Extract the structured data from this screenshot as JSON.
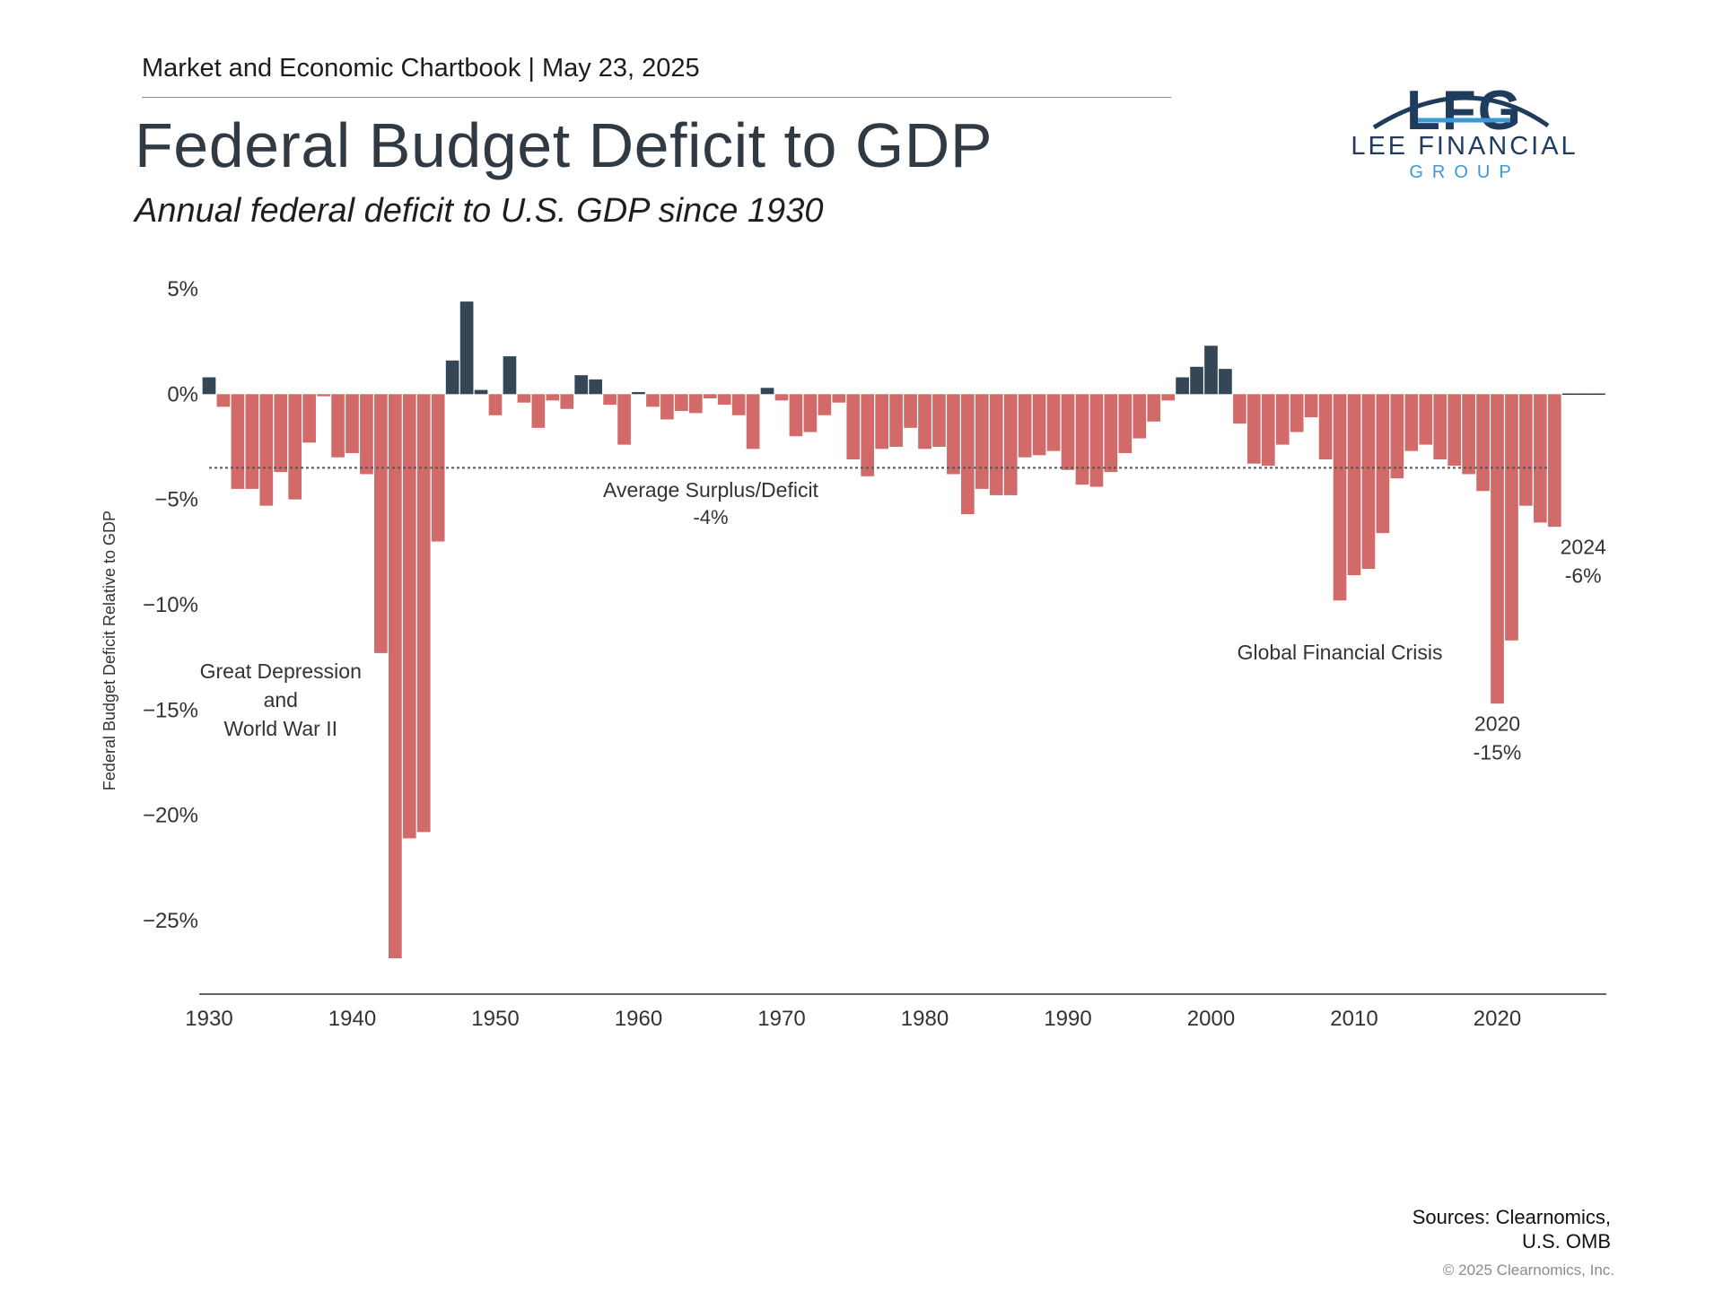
{
  "header": {
    "kicker": "Market and Economic Chartbook | May 23, 2025",
    "title": "Federal Budget Deficit to GDP",
    "subtitle": "Annual federal deficit to U.S. GDP since 1930"
  },
  "logo": {
    "monogram": "LFG",
    "name": "LEE FINANCIAL",
    "tagline": "GROUP",
    "colors": {
      "dark": "#1f3b5e",
      "light": "#3a9ad9"
    }
  },
  "footer": {
    "sources_line1": "Sources: Clearnomics,",
    "sources_line2": "U.S. OMB",
    "copyright": "© 2025 Clearnomics, Inc."
  },
  "chart_data": {
    "type": "bar",
    "ylabel": "Federal Budget Deficit Relative to GDP",
    "ylim": [
      -28.5,
      5
    ],
    "y_ticks": [
      5,
      0,
      -5,
      -10,
      -15,
      -20,
      -25
    ],
    "y_tick_labels": [
      "5%",
      "0%",
      "−5%",
      "−10%",
      "−15%",
      "−20%",
      "−25%"
    ],
    "x_ticks": [
      1930,
      1940,
      1950,
      1960,
      1970,
      1980,
      1990,
      2000,
      2010,
      2020
    ],
    "xlim": [
      1930,
      2025
    ],
    "colors": {
      "surplus": "#354656",
      "deficit": "#d36a6a",
      "axis": "#333333",
      "average": "#555555"
    },
    "average_value": -3.5,
    "average_label": "Average Surplus/Deficit",
    "average_value_label": "-4%",
    "series": [
      {
        "x": [
          1930,
          1931,
          1932,
          1933,
          1934,
          1935,
          1936,
          1937,
          1938,
          1939,
          1940,
          1941,
          1942,
          1943,
          1944,
          1945,
          1946,
          1947,
          1948,
          1949,
          1950,
          1951,
          1952,
          1953,
          1954,
          1955,
          1956,
          1957,
          1958,
          1959,
          1960,
          1961,
          1962,
          1963,
          1964,
          1965,
          1966,
          1967,
          1968,
          1969,
          1970,
          1971,
          1972,
          1973,
          1974,
          1975,
          1976,
          1977,
          1978,
          1979,
          1980,
          1981,
          1982,
          1983,
          1984,
          1985,
          1986,
          1987,
          1988,
          1989,
          1990,
          1991,
          1992,
          1993,
          1994,
          1995,
          1996,
          1997,
          1998,
          1999,
          2000,
          2001,
          2002,
          2003,
          2004,
          2005,
          2006,
          2007,
          2008,
          2009,
          2010,
          2011,
          2012,
          2013,
          2014,
          2015,
          2016,
          2017,
          2018,
          2019,
          2020,
          2021,
          2022,
          2023,
          2024,
          2025,
          2026,
          2027
        ],
        "values": [
          0.8,
          -0.6,
          -4.5,
          -4.5,
          -5.3,
          -3.7,
          -5.0,
          -2.3,
          -0.1,
          -3.0,
          -2.8,
          -3.8,
          -12.3,
          -26.8,
          -21.1,
          -20.8,
          -7.0,
          1.6,
          4.4,
          0.2,
          -1.0,
          1.8,
          -0.4,
          -1.6,
          -0.3,
          -0.7,
          0.9,
          0.7,
          -0.5,
          -2.4,
          0.1,
          -0.6,
          -1.2,
          -0.8,
          -0.9,
          -0.2,
          -0.5,
          -1.0,
          -2.6,
          0.3,
          -0.3,
          -2.0,
          -1.8,
          -1.0,
          -0.4,
          -3.1,
          -3.9,
          -2.6,
          -2.5,
          -1.6,
          -2.6,
          -2.5,
          -3.8,
          -5.7,
          -4.5,
          -4.8,
          -4.8,
          -3.0,
          -2.9,
          -2.7,
          -3.6,
          -4.3,
          -4.4,
          -3.7,
          -2.8,
          -2.1,
          -1.3,
          -0.3,
          0.8,
          1.3,
          2.3,
          1.2,
          -1.4,
          -3.3,
          -3.4,
          -2.4,
          -1.8,
          -1.1,
          -3.1,
          -9.8,
          -8.6,
          -8.3,
          -6.6,
          -4.0,
          -2.7,
          -2.4,
          -3.1,
          -3.4,
          -3.8,
          -4.6,
          -14.7,
          -11.7,
          -5.3,
          -6.1,
          -6.3,
          0,
          0,
          0
        ]
      }
    ],
    "annotations": [
      {
        "x": 1935,
        "y": -13.5,
        "lines": [
          "Great Depression",
          "and",
          "World War II"
        ]
      },
      {
        "x": 2009,
        "y": -12.6,
        "lines": [
          "Global Financial Crisis"
        ]
      },
      {
        "x": 2020,
        "y": -16.0,
        "lines": [
          "2020",
          "-15%"
        ]
      },
      {
        "x": 2026,
        "y": -7.6,
        "lines": [
          "2024",
          "-6%"
        ]
      }
    ]
  }
}
